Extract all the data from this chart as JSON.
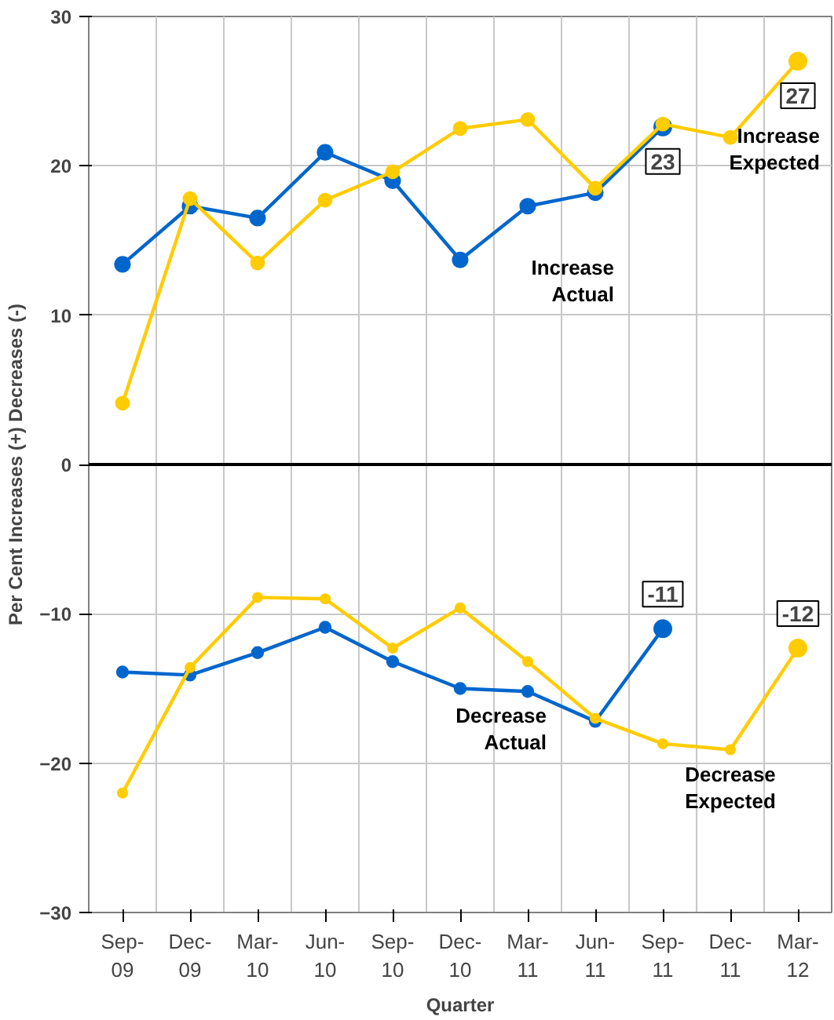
{
  "chart_data": {
    "type": "line",
    "xlabel": "Quarter",
    "ylabel": "Per Cent Increases (+) Decreases (-)",
    "categories": [
      "Sep-09",
      "Dec-09",
      "Mar-10",
      "Jun-10",
      "Sep-10",
      "Dec-10",
      "Mar-11",
      "Jun-11",
      "Sep-11",
      "Dec-11",
      "Mar-12"
    ],
    "series": [
      {
        "name": "Increase Actual",
        "color": "#0066cc",
        "values": [
          13.4,
          17.3,
          16.5,
          20.9,
          19.0,
          13.7,
          17.3,
          18.2,
          22.6,
          null,
          null
        ],
        "value_labels": [
          null,
          null,
          null,
          null,
          null,
          null,
          null,
          null,
          "23",
          null,
          null
        ]
      },
      {
        "name": "Increase Expected",
        "color": "#ffcc00",
        "values": [
          4.1,
          17.8,
          13.5,
          17.7,
          19.6,
          22.5,
          23.1,
          18.5,
          22.8,
          21.9,
          27
        ],
        "value_labels": [
          null,
          null,
          null,
          null,
          null,
          null,
          null,
          null,
          null,
          null,
          "27"
        ]
      },
      {
        "name": "Decrease Actual",
        "color": "#0066cc",
        "values": [
          -13.9,
          -14.1,
          -12.6,
          -10.9,
          -13.2,
          -15.0,
          -15.2,
          -17.2,
          -11.0,
          null,
          null
        ],
        "value_labels": [
          null,
          null,
          null,
          null,
          null,
          null,
          null,
          null,
          "-11",
          null,
          null
        ]
      },
      {
        "name": "Decrease Expected",
        "color": "#ffcc00",
        "values": [
          -22.0,
          -13.6,
          -8.9,
          -9.0,
          -12.3,
          -9.6,
          -13.2,
          -17.0,
          -18.7,
          -19.1,
          -12.3
        ],
        "value_labels": [
          null,
          null,
          null,
          null,
          null,
          null,
          null,
          null,
          null,
          null,
          "-12"
        ]
      }
    ],
    "ylim": [
      -30,
      30
    ],
    "yticks": [
      -30,
      -20,
      -10,
      0,
      10,
      20,
      30
    ],
    "ref_lines": [
      {
        "axis": "y",
        "value": 0,
        "color": "#000000"
      }
    ],
    "grid": true,
    "marker": "circle",
    "line_style": "solid"
  }
}
